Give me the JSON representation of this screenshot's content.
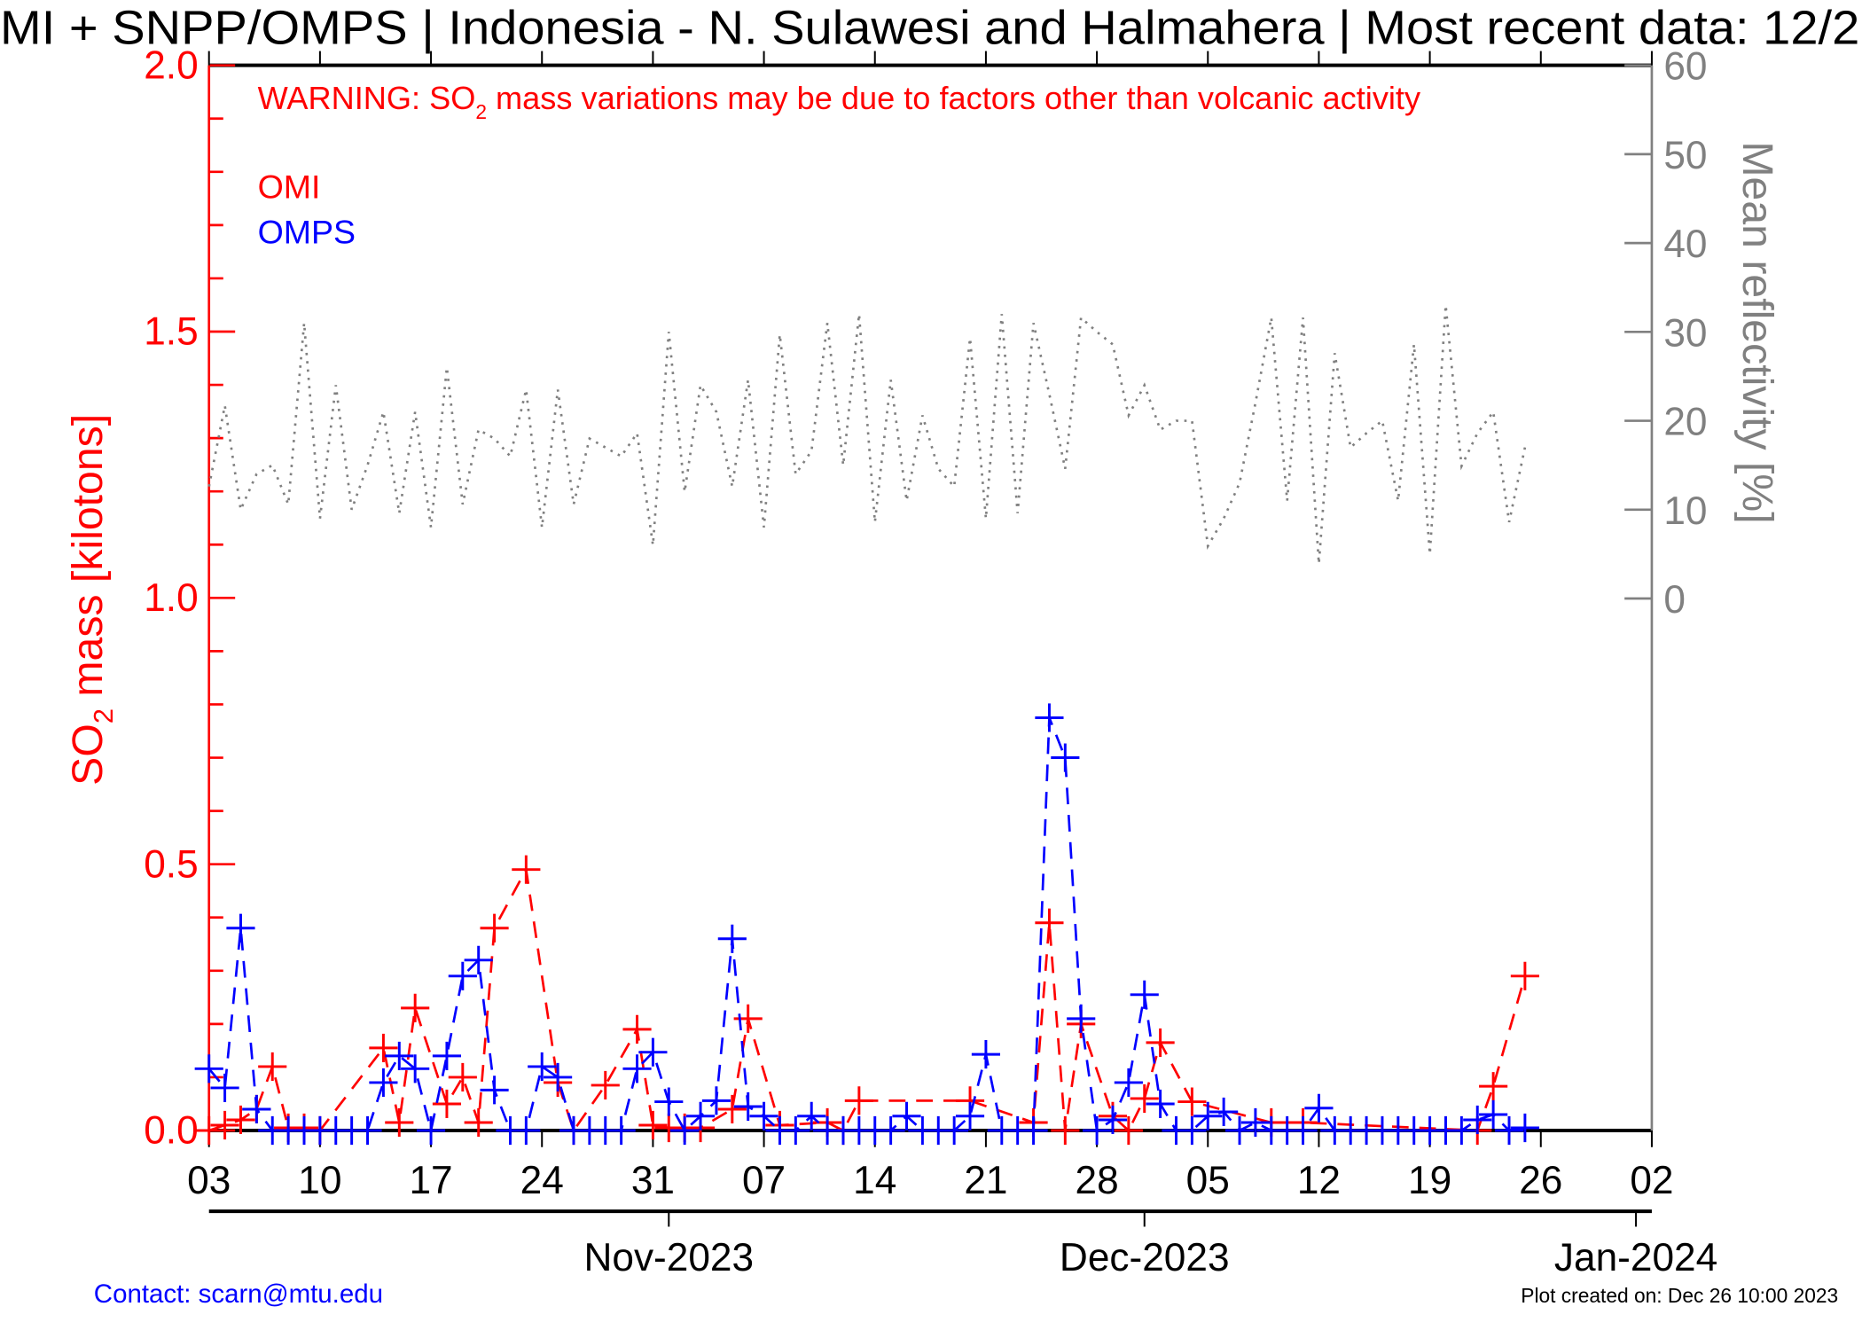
{
  "chart_data": {
    "type": "line",
    "title": "MI + SNPP/OMPS | Indonesia - N. Sulawesi and Halmahera | Most recent data: 12/2",
    "warning": {
      "prefix": "WARNING: SO",
      "sub": "2",
      "suffix": " mass variations may be due to factors other than volcanic activity"
    },
    "ylabel": {
      "prefix": "SO",
      "sub": "2",
      "suffix": " mass [kilotons]"
    },
    "y2label": "Mean reflectivity [%]",
    "x_start": "2023-10-03",
    "x_range_days": [
      0,
      91
    ],
    "ylim": [
      0,
      2.0
    ],
    "y_ticks": [
      "0.0",
      "0.5",
      "1.0",
      "1.5",
      "2.0"
    ],
    "y2lim": [
      0,
      60
    ],
    "y2_ticks": [
      "0",
      "10",
      "20",
      "30",
      "40",
      "50",
      "60"
    ],
    "x_tick_labels": [
      "03",
      "10",
      "17",
      "24",
      "31",
      "07",
      "14",
      "21",
      "28",
      "05",
      "12",
      "19",
      "26",
      "02"
    ],
    "month_labels": [
      {
        "label": "Nov-2023",
        "day": 29
      },
      {
        "label": "Dec-2023",
        "day": 59
      },
      {
        "label": "Jan-2024",
        "day": 90
      }
    ],
    "legend": {
      "placement": "top-left",
      "entries": [
        {
          "name": "OMI",
          "color": "#ff0000"
        },
        {
          "name": "OMPS",
          "color": "#0000ff"
        }
      ]
    },
    "series": [
      {
        "name": "OMI",
        "color": "#ff0000",
        "axis": "left",
        "style": "dashed",
        "marker": "plus",
        "points": [
          [
            0,
            0.0
          ],
          [
            1,
            0.01
          ],
          [
            2,
            0.02
          ],
          [
            3,
            0.04
          ],
          [
            4,
            0.12
          ],
          [
            5,
            0.005
          ],
          [
            6,
            0.005
          ],
          [
            7,
            0.0
          ],
          [
            11,
            0.155
          ],
          [
            12,
            0.015
          ],
          [
            13,
            0.23
          ],
          [
            15,
            0.05
          ],
          [
            16,
            0.1
          ],
          [
            17,
            0.015
          ],
          [
            18,
            0.38
          ],
          [
            20,
            0.49
          ],
          [
            22,
            0.09
          ],
          [
            23,
            0.0
          ],
          [
            25,
            0.085
          ],
          [
            27,
            0.19
          ],
          [
            28,
            0.01
          ],
          [
            29,
            0.005
          ],
          [
            30,
            0.005
          ],
          [
            31,
            0.005
          ],
          [
            33,
            0.04
          ],
          [
            34,
            0.21
          ],
          [
            36,
            0.01
          ],
          [
            39,
            0.015
          ],
          [
            40,
            0.0
          ],
          [
            41,
            0.056
          ],
          [
            48,
            0.056
          ],
          [
            52,
            0.015
          ],
          [
            53,
            0.39
          ],
          [
            54,
            0.0
          ],
          [
            55,
            0.2
          ],
          [
            57,
            0.027
          ],
          [
            58,
            0.0
          ],
          [
            59,
            0.06
          ],
          [
            60,
            0.165
          ],
          [
            62,
            0.054
          ],
          [
            67,
            0.015
          ],
          [
            69,
            0.015
          ],
          [
            80,
            0.0
          ],
          [
            81,
            0.083
          ],
          [
            83,
            0.29
          ]
        ]
      },
      {
        "name": "OMPS",
        "color": "#0000ff",
        "axis": "left",
        "style": "dashed",
        "marker": "plus",
        "points": [
          [
            0,
            0.116
          ],
          [
            1,
            0.08
          ],
          [
            2,
            0.38
          ],
          [
            3,
            0.04
          ],
          [
            4,
            0.0
          ],
          [
            5,
            0.0
          ],
          [
            6,
            0.0
          ],
          [
            7,
            0.0
          ],
          [
            8,
            0.0
          ],
          [
            9,
            0.0
          ],
          [
            10,
            0.0
          ],
          [
            11,
            0.09
          ],
          [
            12,
            0.14
          ],
          [
            13,
            0.116
          ],
          [
            14,
            0.0
          ],
          [
            15,
            0.14
          ],
          [
            16,
            0.29
          ],
          [
            17,
            0.32
          ],
          [
            18,
            0.076
          ],
          [
            19,
            0.0
          ],
          [
            20,
            0.0
          ],
          [
            21,
            0.12
          ],
          [
            22,
            0.1
          ],
          [
            23,
            0.0
          ],
          [
            24,
            0.0
          ],
          [
            25,
            0.0
          ],
          [
            26,
            0.0
          ],
          [
            27,
            0.116
          ],
          [
            28,
            0.147
          ],
          [
            29,
            0.054
          ],
          [
            30,
            0.0
          ],
          [
            31,
            0.027
          ],
          [
            32,
            0.056
          ],
          [
            33,
            0.36
          ],
          [
            34,
            0.045
          ],
          [
            35,
            0.027
          ],
          [
            36,
            0.0
          ],
          [
            37,
            0.0
          ],
          [
            38,
            0.027
          ],
          [
            39,
            0.0
          ],
          [
            40,
            0.0
          ],
          [
            41,
            0.0
          ],
          [
            42,
            0.0
          ],
          [
            43,
            0.0
          ],
          [
            44,
            0.027
          ],
          [
            45,
            0.0
          ],
          [
            46,
            0.0
          ],
          [
            47,
            0.0
          ],
          [
            48,
            0.027
          ],
          [
            49,
            0.143
          ],
          [
            50,
            0.0
          ],
          [
            51,
            0.0
          ],
          [
            52,
            0.0
          ],
          [
            53,
            0.775
          ],
          [
            54,
            0.7
          ],
          [
            55,
            0.21
          ],
          [
            56,
            0.0
          ],
          [
            57,
            0.02
          ],
          [
            58,
            0.09
          ],
          [
            59,
            0.255
          ],
          [
            60,
            0.05
          ],
          [
            61,
            0.0
          ],
          [
            62,
            0.0
          ],
          [
            63,
            0.027
          ],
          [
            64,
            0.035
          ],
          [
            65,
            0.0
          ],
          [
            66,
            0.015
          ],
          [
            67,
            0.0
          ],
          [
            68,
            0.0
          ],
          [
            69,
            0.0
          ],
          [
            70,
            0.042
          ],
          [
            71,
            0.0
          ],
          [
            72,
            0.0
          ],
          [
            73,
            0.0
          ],
          [
            74,
            0.0
          ],
          [
            75,
            0.0
          ],
          [
            76,
            0.0
          ],
          [
            77,
            0.0
          ],
          [
            78,
            0.0
          ],
          [
            79,
            0.0
          ],
          [
            80,
            0.02
          ],
          [
            81,
            0.03
          ],
          [
            82,
            0.0
          ],
          [
            83,
            0.005
          ]
        ]
      },
      {
        "name": "Mean reflectivity",
        "color": "#808080",
        "axis": "right",
        "style": "dotted",
        "marker": "none",
        "points": [
          [
            0,
            12.6
          ],
          [
            1,
            21.7
          ],
          [
            2,
            10
          ],
          [
            3,
            14
          ],
          [
            4,
            15
          ],
          [
            5,
            10.6
          ],
          [
            6,
            31
          ],
          [
            7,
            9
          ],
          [
            8,
            24
          ],
          [
            9,
            10
          ],
          [
            10,
            15
          ],
          [
            11,
            21
          ],
          [
            12,
            9.6
          ],
          [
            13,
            21
          ],
          [
            14,
            8
          ],
          [
            15,
            26
          ],
          [
            16,
            10.6
          ],
          [
            17,
            19
          ],
          [
            18,
            18
          ],
          [
            19,
            16
          ],
          [
            20,
            23.5
          ],
          [
            21,
            8
          ],
          [
            22,
            23.5
          ],
          [
            23,
            10.6
          ],
          [
            24,
            18
          ],
          [
            25,
            17
          ],
          [
            26,
            16
          ],
          [
            27,
            18.6
          ],
          [
            28,
            6
          ],
          [
            29,
            30
          ],
          [
            30,
            12
          ],
          [
            31,
            24
          ],
          [
            32,
            21
          ],
          [
            33,
            12.6
          ],
          [
            34,
            24.6
          ],
          [
            35,
            8
          ],
          [
            36,
            29.7
          ],
          [
            37,
            14
          ],
          [
            38,
            16.6
          ],
          [
            39,
            31
          ],
          [
            40,
            15
          ],
          [
            41,
            32
          ],
          [
            42,
            8.6
          ],
          [
            43,
            24.6
          ],
          [
            44,
            11
          ],
          [
            45,
            20.6
          ],
          [
            46,
            14.6
          ],
          [
            47,
            12.6
          ],
          [
            48,
            29.3
          ],
          [
            49,
            9
          ],
          [
            50,
            32
          ],
          [
            51,
            9.6
          ],
          [
            52,
            31
          ],
          [
            53,
            23
          ],
          [
            54,
            14.6
          ],
          [
            55,
            31.6
          ],
          [
            56,
            30
          ],
          [
            57,
            28.6
          ],
          [
            58,
            20.6
          ],
          [
            59,
            24
          ],
          [
            60,
            19
          ],
          [
            61,
            20
          ],
          [
            62,
            20
          ],
          [
            63,
            5.9
          ],
          [
            64,
            9
          ],
          [
            65,
            13
          ],
          [
            66,
            22
          ],
          [
            67,
            31.6
          ],
          [
            68,
            11
          ],
          [
            69,
            31.6
          ],
          [
            70,
            3.9
          ],
          [
            71,
            27.6
          ],
          [
            72,
            17
          ],
          [
            73,
            18.6
          ],
          [
            74,
            20
          ],
          [
            75,
            11
          ],
          [
            76,
            28.6
          ],
          [
            77,
            5
          ],
          [
            78,
            33
          ],
          [
            79,
            14.9
          ],
          [
            80,
            18.6
          ],
          [
            81,
            21
          ],
          [
            82,
            8.6
          ],
          [
            83,
            17
          ]
        ]
      }
    ]
  },
  "footer": {
    "contact": "Contact: scarn@mtu.edu",
    "created": "Plot created on: Dec 26 10:00 2023"
  }
}
